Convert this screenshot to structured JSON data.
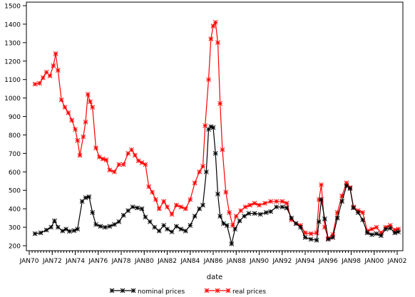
{
  "chart_data": {
    "type": "line",
    "xlabel": "date",
    "ylabel": "",
    "xlim": [
      1970,
      2002
    ],
    "ylim": [
      200,
      1500
    ],
    "x_ticks": [
      "JAN70",
      "JAN72",
      "JAN74",
      "JAN76",
      "JAN78",
      "JAN80",
      "JAN82",
      "JAN84",
      "JAN86",
      "JAN88",
      "JAN90",
      "JAN92",
      "JAN94",
      "JAN96",
      "JAN98",
      "JAN00",
      "JAN02"
    ],
    "y_ticks": [
      200,
      300,
      400,
      500,
      600,
      700,
      800,
      900,
      1000,
      1100,
      1200,
      1300,
      1400,
      1500
    ],
    "legend_position": "bottom",
    "series": [
      {
        "name": "nominal prices",
        "color": "#000000",
        "marker": "asterisk",
        "points": [
          [
            1970.5,
            265
          ],
          [
            1971.0,
            270
          ],
          [
            1971.5,
            285
          ],
          [
            1971.9,
            300
          ],
          [
            1972.2,
            335
          ],
          [
            1972.5,
            300
          ],
          [
            1972.9,
            280
          ],
          [
            1973.2,
            290
          ],
          [
            1973.5,
            278
          ],
          [
            1973.9,
            282
          ],
          [
            1974.2,
            290
          ],
          [
            1974.6,
            440
          ],
          [
            1974.9,
            460
          ],
          [
            1975.2,
            465
          ],
          [
            1975.5,
            380
          ],
          [
            1975.8,
            315
          ],
          [
            1976.2,
            305
          ],
          [
            1976.6,
            300
          ],
          [
            1977.0,
            305
          ],
          [
            1977.4,
            315
          ],
          [
            1977.8,
            330
          ],
          [
            1978.2,
            365
          ],
          [
            1978.6,
            390
          ],
          [
            1979.0,
            410
          ],
          [
            1979.4,
            405
          ],
          [
            1979.8,
            400
          ],
          [
            1980.1,
            355
          ],
          [
            1980.5,
            330
          ],
          [
            1980.9,
            300
          ],
          [
            1981.3,
            280
          ],
          [
            1981.7,
            310
          ],
          [
            1982.0,
            290
          ],
          [
            1982.4,
            275
          ],
          [
            1982.8,
            305
          ],
          [
            1983.2,
            290
          ],
          [
            1983.6,
            280
          ],
          [
            1984.0,
            310
          ],
          [
            1984.4,
            360
          ],
          [
            1984.8,
            400
          ],
          [
            1985.1,
            420
          ],
          [
            1985.4,
            600
          ],
          [
            1985.6,
            830
          ],
          [
            1985.8,
            845
          ],
          [
            1986.0,
            840
          ],
          [
            1986.2,
            700
          ],
          [
            1986.4,
            480
          ],
          [
            1986.6,
            360
          ],
          [
            1986.9,
            320
          ],
          [
            1987.2,
            310
          ],
          [
            1987.6,
            210
          ],
          [
            1987.9,
            290
          ],
          [
            1988.3,
            335
          ],
          [
            1988.7,
            360
          ],
          [
            1989.1,
            375
          ],
          [
            1989.6,
            375
          ],
          [
            1990.1,
            370
          ],
          [
            1990.6,
            380
          ],
          [
            1991.0,
            385
          ],
          [
            1991.5,
            410
          ],
          [
            1992.0,
            410
          ],
          [
            1992.4,
            405
          ],
          [
            1992.8,
            350
          ],
          [
            1993.2,
            320
          ],
          [
            1993.6,
            300
          ],
          [
            1994.0,
            245
          ],
          [
            1994.5,
            235
          ],
          [
            1995.0,
            230
          ],
          [
            1995.2,
            330
          ],
          [
            1995.4,
            450
          ],
          [
            1995.7,
            345
          ],
          [
            1996.0,
            235
          ],
          [
            1996.4,
            245
          ],
          [
            1996.8,
            350
          ],
          [
            1997.2,
            440
          ],
          [
            1997.6,
            525
          ],
          [
            1997.9,
            510
          ],
          [
            1998.2,
            405
          ],
          [
            1998.6,
            380
          ],
          [
            1999.0,
            340
          ],
          [
            1999.4,
            270
          ],
          [
            1999.8,
            260
          ],
          [
            2000.2,
            265
          ],
          [
            2000.6,
            255
          ],
          [
            2001.0,
            290
          ],
          [
            2001.4,
            295
          ],
          [
            2001.8,
            270
          ],
          [
            2002.1,
            275
          ]
        ]
      },
      {
        "name": "real prices",
        "color": "#ff0000",
        "marker": "asterisk",
        "points": [
          [
            1970.5,
            1075
          ],
          [
            1970.9,
            1080
          ],
          [
            1971.2,
            1110
          ],
          [
            1971.5,
            1140
          ],
          [
            1971.8,
            1120
          ],
          [
            1972.1,
            1175
          ],
          [
            1972.3,
            1240
          ],
          [
            1972.5,
            1150
          ],
          [
            1972.8,
            990
          ],
          [
            1973.1,
            950
          ],
          [
            1973.4,
            920
          ],
          [
            1973.7,
            880
          ],
          [
            1974.0,
            830
          ],
          [
            1974.2,
            770
          ],
          [
            1974.4,
            690
          ],
          [
            1974.7,
            790
          ],
          [
            1974.9,
            870
          ],
          [
            1975.1,
            1020
          ],
          [
            1975.3,
            980
          ],
          [
            1975.5,
            950
          ],
          [
            1975.8,
            730
          ],
          [
            1976.1,
            680
          ],
          [
            1976.4,
            670
          ],
          [
            1976.7,
            665
          ],
          [
            1977.0,
            610
          ],
          [
            1977.4,
            600
          ],
          [
            1977.8,
            640
          ],
          [
            1978.2,
            640
          ],
          [
            1978.6,
            700
          ],
          [
            1978.9,
            720
          ],
          [
            1979.2,
            690
          ],
          [
            1979.5,
            660
          ],
          [
            1979.8,
            650
          ],
          [
            1980.1,
            640
          ],
          [
            1980.4,
            520
          ],
          [
            1980.7,
            490
          ],
          [
            1981.0,
            450
          ],
          [
            1981.3,
            400
          ],
          [
            1981.7,
            440
          ],
          [
            1982.0,
            410
          ],
          [
            1982.4,
            370
          ],
          [
            1982.8,
            420
          ],
          [
            1983.2,
            410
          ],
          [
            1983.6,
            400
          ],
          [
            1984.0,
            450
          ],
          [
            1984.4,
            540
          ],
          [
            1984.8,
            600
          ],
          [
            1985.1,
            630
          ],
          [
            1985.3,
            850
          ],
          [
            1985.6,
            1100
          ],
          [
            1985.8,
            1320
          ],
          [
            1986.0,
            1390
          ],
          [
            1986.2,
            1410
          ],
          [
            1986.4,
            1300
          ],
          [
            1986.6,
            970
          ],
          [
            1986.8,
            720
          ],
          [
            1987.1,
            490
          ],
          [
            1987.4,
            380
          ],
          [
            1987.7,
            310
          ],
          [
            1988.0,
            360
          ],
          [
            1988.4,
            390
          ],
          [
            1988.8,
            410
          ],
          [
            1989.2,
            420
          ],
          [
            1989.6,
            430
          ],
          [
            1990.0,
            420
          ],
          [
            1990.5,
            430
          ],
          [
            1991.0,
            440
          ],
          [
            1991.5,
            440
          ],
          [
            1992.0,
            440
          ],
          [
            1992.4,
            430
          ],
          [
            1992.8,
            340
          ],
          [
            1993.2,
            320
          ],
          [
            1993.6,
            310
          ],
          [
            1994.0,
            270
          ],
          [
            1994.5,
            265
          ],
          [
            1995.0,
            270
          ],
          [
            1995.2,
            450
          ],
          [
            1995.4,
            530
          ],
          [
            1995.7,
            300
          ],
          [
            1996.0,
            240
          ],
          [
            1996.4,
            260
          ],
          [
            1996.8,
            380
          ],
          [
            1997.2,
            470
          ],
          [
            1997.6,
            540
          ],
          [
            1997.9,
            515
          ],
          [
            1998.2,
            410
          ],
          [
            1998.6,
            390
          ],
          [
            1999.0,
            380
          ],
          [
            1999.4,
            280
          ],
          [
            1999.8,
            290
          ],
          [
            2000.2,
            300
          ],
          [
            2000.6,
            270
          ],
          [
            2001.0,
            300
          ],
          [
            2001.4,
            310
          ],
          [
            2001.8,
            285
          ],
          [
            2002.1,
            290
          ]
        ]
      }
    ]
  }
}
